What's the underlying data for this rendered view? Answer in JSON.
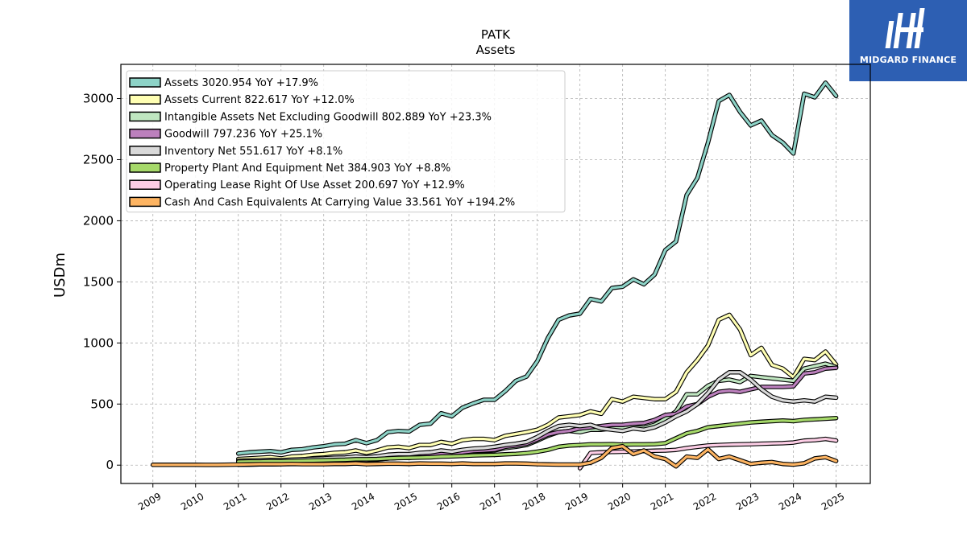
{
  "brand": {
    "name": "MIDGARD FINANCE",
    "bg": "#2d5fb3"
  },
  "chart_data": {
    "type": "line",
    "title": "PATK",
    "subtitle": "Assets",
    "ylabel": "USDm",
    "xlabel": "",
    "xlim": [
      2008.25,
      2025.8
    ],
    "ylim": [
      -150,
      3280
    ],
    "x_ticks": [
      "2009",
      "2010",
      "2011",
      "2012",
      "2013",
      "2014",
      "2015",
      "2016",
      "2017",
      "2018",
      "2019",
      "2020",
      "2021",
      "2022",
      "2023",
      "2024",
      "2025"
    ],
    "y_ticks": [
      0,
      500,
      1000,
      1500,
      2000,
      2500,
      3000
    ],
    "grid": true,
    "legend_position": "top-left",
    "series": [
      {
        "name": "Assets",
        "legend": "Assets  3020.954 YoY +17.9%",
        "color": "#8dd3c7",
        "x": [
          2011.0,
          2011.25,
          2011.5,
          2011.75,
          2012.0,
          2012.25,
          2012.5,
          2012.75,
          2013.0,
          2013.25,
          2013.5,
          2013.75,
          2014.0,
          2014.25,
          2014.5,
          2014.75,
          2015.0,
          2015.25,
          2015.5,
          2015.75,
          2016.0,
          2016.25,
          2016.5,
          2016.75,
          2017.0,
          2017.25,
          2017.5,
          2017.75,
          2018.0,
          2018.25,
          2018.5,
          2018.75,
          2019.0,
          2019.25,
          2019.5,
          2019.75,
          2020.0,
          2020.25,
          2020.5,
          2020.75,
          2021.0,
          2021.25,
          2021.5,
          2021.75,
          2022.0,
          2022.25,
          2022.5,
          2022.75,
          2023.0,
          2023.25,
          2023.5,
          2023.75,
          2024.0,
          2024.25,
          2024.5,
          2024.75,
          2025.0
        ],
        "y": [
          95,
          105,
          110,
          115,
          105,
          125,
          130,
          145,
          155,
          170,
          175,
          205,
          180,
          205,
          270,
          280,
          275,
          330,
          340,
          425,
          400,
          470,
          505,
          535,
          535,
          605,
          690,
          725,
          850,
          1040,
          1190,
          1225,
          1240,
          1360,
          1340,
          1450,
          1460,
          1520,
          1480,
          1560,
          1760,
          1830,
          2210,
          2350,
          2640,
          2980,
          3030,
          2890,
          2780,
          2820,
          2700,
          2640,
          2550,
          3040,
          3010,
          3130,
          3021
        ]
      },
      {
        "name": "Assets Current",
        "legend": "Assets Current  822.617 YoY +12.0%",
        "color": "#ffffb3",
        "x": [
          2011.0,
          2011.25,
          2011.5,
          2011.75,
          2012.0,
          2012.25,
          2012.5,
          2012.75,
          2013.0,
          2013.25,
          2013.5,
          2013.75,
          2014.0,
          2014.25,
          2014.5,
          2014.75,
          2015.0,
          2015.25,
          2015.5,
          2015.75,
          2016.0,
          2016.25,
          2016.5,
          2016.75,
          2017.0,
          2017.25,
          2017.5,
          2017.75,
          2018.0,
          2018.25,
          2018.5,
          2018.75,
          2019.0,
          2019.25,
          2019.5,
          2019.75,
          2020.0,
          2020.25,
          2020.5,
          2020.75,
          2021.0,
          2021.25,
          2021.5,
          2021.75,
          2022.0,
          2022.25,
          2022.5,
          2022.75,
          2023.0,
          2023.25,
          2023.5,
          2023.75,
          2024.0,
          2024.25,
          2024.5,
          2024.75,
          2025.0
        ],
        "y": [
          50,
          55,
          60,
          65,
          55,
          70,
          75,
          85,
          90,
          100,
          105,
          120,
          100,
          120,
          145,
          150,
          140,
          165,
          165,
          190,
          175,
          205,
          215,
          215,
          205,
          240,
          255,
          270,
          290,
          330,
          390,
          400,
          410,
          440,
          420,
          540,
          520,
          560,
          550,
          540,
          540,
          600,
          760,
          860,
          980,
          1190,
          1230,
          1110,
          900,
          960,
          820,
          790,
          720,
          870,
          860,
          930,
          823
        ]
      },
      {
        "name": "Intangible Assets Net Excluding Goodwill",
        "legend": "Intangible Assets Net Excluding Goodwill  802.889 YoY +23.3%",
        "color": "#bfe6c0",
        "x": [
          2011.0,
          2011.25,
          2011.5,
          2011.75,
          2012.0,
          2012.25,
          2012.5,
          2012.75,
          2013.0,
          2013.25,
          2013.5,
          2013.75,
          2014.0,
          2014.25,
          2014.5,
          2014.75,
          2015.0,
          2015.25,
          2015.5,
          2015.75,
          2016.0,
          2016.25,
          2016.5,
          2016.75,
          2017.0,
          2017.25,
          2017.5,
          2017.75,
          2018.0,
          2018.25,
          2018.5,
          2018.75,
          2019.0,
          2019.25,
          2019.5,
          2019.75,
          2020.0,
          2020.25,
          2020.5,
          2020.75,
          2021.0,
          2021.25,
          2021.5,
          2021.75,
          2022.0,
          2022.25,
          2022.5,
          2022.75,
          2023.0,
          2023.25,
          2023.5,
          2023.75,
          2024.0,
          2024.25,
          2024.5,
          2024.75,
          2025.0
        ],
        "y": [
          5,
          5,
          6,
          6,
          8,
          10,
          14,
          18,
          22,
          28,
          32,
          40,
          38,
          45,
          55,
          60,
          60,
          70,
          75,
          90,
          90,
          100,
          110,
          115,
          120,
          140,
          150,
          165,
          200,
          240,
          270,
          280,
          270,
          290,
          290,
          300,
          300,
          310,
          305,
          330,
          380,
          440,
          580,
          580,
          650,
          690,
          700,
          680,
          730,
          720,
          710,
          700,
          690,
          790,
          810,
          830,
          803
        ]
      },
      {
        "name": "Goodwill",
        "legend": "Goodwill  797.236 YoY +25.1%",
        "color": "#bc80bd",
        "x": [
          2011.0,
          2011.25,
          2011.5,
          2011.75,
          2012.0,
          2012.25,
          2012.5,
          2012.75,
          2013.0,
          2013.25,
          2013.5,
          2013.75,
          2014.0,
          2014.25,
          2014.5,
          2014.75,
          2015.0,
          2015.25,
          2015.5,
          2015.75,
          2016.0,
          2016.25,
          2016.5,
          2016.75,
          2017.0,
          2017.25,
          2017.5,
          2017.75,
          2018.0,
          2018.25,
          2018.5,
          2018.75,
          2019.0,
          2019.25,
          2019.5,
          2019.75,
          2020.0,
          2020.25,
          2020.5,
          2020.75,
          2021.0,
          2021.25,
          2021.5,
          2021.75,
          2022.0,
          2022.25,
          2022.5,
          2022.75,
          2023.0,
          2023.25,
          2023.5,
          2023.75,
          2024.0,
          2024.25,
          2024.5,
          2024.75,
          2025.0
        ],
        "y": [
          5,
          5,
          6,
          7,
          10,
          12,
          16,
          20,
          24,
          30,
          35,
          42,
          40,
          48,
          55,
          60,
          62,
          72,
          78,
          92,
          95,
          105,
          115,
          120,
          125,
          150,
          160,
          175,
          210,
          250,
          270,
          280,
          300,
          310,
          320,
          330,
          330,
          340,
          345,
          370,
          410,
          420,
          480,
          500,
          560,
          600,
          610,
          600,
          620,
          640,
          640,
          640,
          645,
          750,
          760,
          790,
          797
        ]
      },
      {
        "name": "Inventory Net",
        "legend": "Inventory Net  551.617 YoY +8.1%",
        "color": "#d9d9d9",
        "x": [
          2011.0,
          2011.25,
          2011.5,
          2011.75,
          2012.0,
          2012.25,
          2012.5,
          2012.75,
          2013.0,
          2013.25,
          2013.5,
          2013.75,
          2014.0,
          2014.25,
          2014.5,
          2014.75,
          2015.0,
          2015.25,
          2015.5,
          2015.75,
          2016.0,
          2016.25,
          2016.5,
          2016.75,
          2017.0,
          2017.25,
          2017.5,
          2017.75,
          2018.0,
          2018.25,
          2018.5,
          2018.75,
          2019.0,
          2019.25,
          2019.5,
          2019.75,
          2020.0,
          2020.25,
          2020.5,
          2020.75,
          2021.0,
          2021.25,
          2021.5,
          2021.75,
          2022.0,
          2022.25,
          2022.5,
          2022.75,
          2023.0,
          2023.25,
          2023.5,
          2023.75,
          2024.0,
          2024.25,
          2024.5,
          2024.75,
          2025.0
        ],
        "y": [
          35,
          38,
          40,
          42,
          40,
          45,
          48,
          52,
          55,
          60,
          62,
          70,
          65,
          72,
          85,
          90,
          90,
          100,
          105,
          120,
          110,
          125,
          135,
          140,
          150,
          165,
          175,
          190,
          230,
          280,
          320,
          330,
          320,
          330,
          300,
          290,
          280,
          300,
          290,
          310,
          350,
          400,
          440,
          500,
          590,
          700,
          760,
          760,
          700,
          620,
          560,
          530,
          520,
          530,
          520,
          560,
          552
        ]
      },
      {
        "name": "Property Plant And Equipment Net",
        "legend": "Property Plant And Equipment Net  384.903 YoY +8.8%",
        "color": "#a6d96a",
        "x": [
          2011.0,
          2011.25,
          2011.5,
          2011.75,
          2012.0,
          2012.25,
          2012.5,
          2012.75,
          2013.0,
          2013.25,
          2013.5,
          2013.75,
          2014.0,
          2014.25,
          2014.5,
          2014.75,
          2015.0,
          2015.25,
          2015.5,
          2015.75,
          2016.0,
          2016.25,
          2016.5,
          2016.75,
          2017.0,
          2017.25,
          2017.5,
          2017.75,
          2018.0,
          2018.25,
          2018.5,
          2018.75,
          2019.0,
          2019.25,
          2019.5,
          2019.75,
          2020.0,
          2020.25,
          2020.5,
          2020.75,
          2021.0,
          2021.25,
          2021.5,
          2021.75,
          2022.0,
          2022.25,
          2022.5,
          2022.75,
          2023.0,
          2023.25,
          2023.5,
          2023.75,
          2024.0,
          2024.25,
          2024.5,
          2024.75,
          2025.0
        ],
        "y": [
          28,
          30,
          30,
          32,
          32,
          34,
          36,
          38,
          40,
          42,
          44,
          48,
          48,
          50,
          55,
          58,
          60,
          62,
          64,
          70,
          72,
          75,
          80,
          82,
          84,
          88,
          92,
          98,
          110,
          125,
          150,
          160,
          165,
          170,
          170,
          172,
          168,
          170,
          170,
          172,
          180,
          220,
          260,
          280,
          310,
          320,
          330,
          340,
          350,
          355,
          360,
          365,
          360,
          370,
          375,
          380,
          385
        ]
      },
      {
        "name": "Operating Lease Right Of Use Asset",
        "legend": "Operating Lease Right Of Use Asset  200.697 YoY +12.9%",
        "color": "#fccde5",
        "x": [
          2019.0,
          2019.25,
          2019.5,
          2019.75,
          2020.0,
          2020.25,
          2020.5,
          2020.75,
          2021.0,
          2021.25,
          2021.5,
          2021.75,
          2022.0,
          2022.25,
          2022.5,
          2022.75,
          2023.0,
          2023.25,
          2023.5,
          2023.75,
          2024.0,
          2024.25,
          2024.5,
          2024.75,
          2025.0
        ],
        "y": [
          -25,
          100,
          105,
          108,
          110,
          112,
          115,
          118,
          120,
          125,
          140,
          150,
          160,
          165,
          168,
          170,
          172,
          175,
          178,
          180,
          185,
          200,
          205,
          215,
          201
        ]
      },
      {
        "name": "Cash And Cash Equivalents At Carrying Value",
        "legend": "Cash And Cash Equivalents At Carrying Value  33.561 YoY +194.2%",
        "color": "#fdb462",
        "x": [
          2009.0,
          2009.5,
          2010.0,
          2010.5,
          2011.0,
          2011.25,
          2011.5,
          2011.75,
          2012.0,
          2012.25,
          2012.5,
          2012.75,
          2013.0,
          2013.25,
          2013.5,
          2013.75,
          2014.0,
          2014.25,
          2014.5,
          2014.75,
          2015.0,
          2015.25,
          2015.5,
          2015.75,
          2016.0,
          2016.25,
          2016.5,
          2016.75,
          2017.0,
          2017.25,
          2017.5,
          2017.75,
          2018.0,
          2018.25,
          2018.5,
          2018.75,
          2019.0,
          2019.25,
          2019.5,
          2019.75,
          2020.0,
          2020.25,
          2020.5,
          2020.75,
          2021.0,
          2021.25,
          2021.5,
          2021.75,
          2022.0,
          2022.25,
          2022.5,
          2022.75,
          2023.0,
          2023.25,
          2023.5,
          2023.75,
          2024.0,
          2024.25,
          2024.5,
          2024.75,
          2025.0
        ],
        "y": [
          3,
          3,
          3,
          2,
          5,
          6,
          8,
          8,
          8,
          10,
          8,
          8,
          8,
          10,
          10,
          14,
          8,
          10,
          12,
          12,
          10,
          14,
          12,
          12,
          10,
          14,
          10,
          10,
          10,
          14,
          14,
          12,
          8,
          6,
          5,
          5,
          5,
          20,
          60,
          140,
          155,
          90,
          120,
          70,
          50,
          -10,
          70,
          60,
          130,
          50,
          70,
          40,
          10,
          20,
          25,
          10,
          5,
          15,
          55,
          65,
          34
        ]
      }
    ]
  }
}
